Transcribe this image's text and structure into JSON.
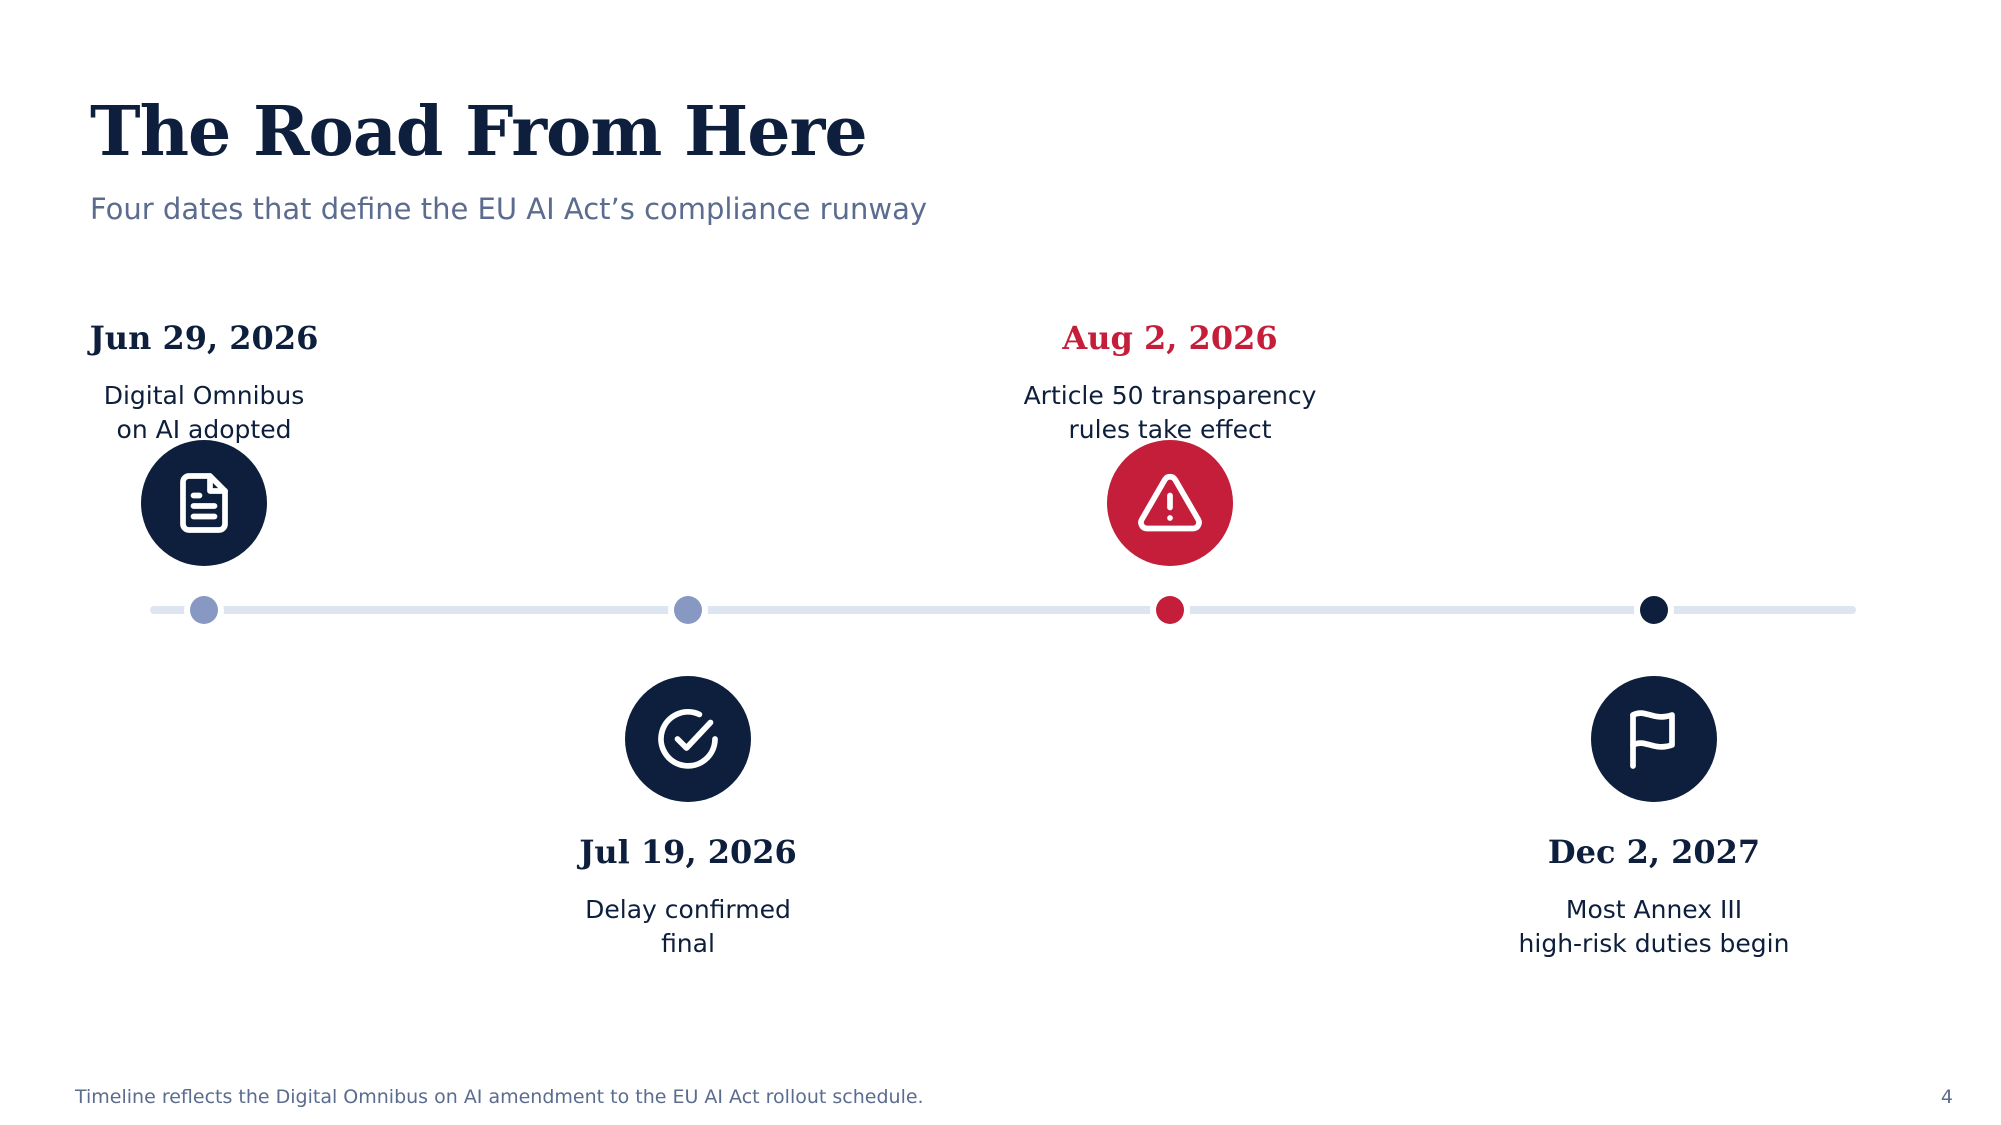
{
  "title": "The Road From Here",
  "subtitle": "Four dates that define the EU AI Act’s compliance runway",
  "milestones": [
    {
      "date": "Jun 29, 2026",
      "line1": "Digital Omnibus",
      "line2": "on AI adopted",
      "icon": "document-icon",
      "position": "above",
      "accent": "#0d1f3c",
      "dot_color": "#8798c2"
    },
    {
      "date": "Jul 19, 2026",
      "line1": "Delay confirmed",
      "line2": "final",
      "icon": "check-circle-icon",
      "position": "below",
      "accent": "#0d1f3c",
      "dot_color": "#8798c2"
    },
    {
      "date": "Aug 2, 2026",
      "line1": "Article 50 transparency",
      "line2": "rules take effect",
      "icon": "warning-icon",
      "position": "above",
      "accent": "#c41e3a",
      "dot_color": "#c41e3a"
    },
    {
      "date": "Dec 2, 2027",
      "line1": "Most Annex III",
      "line2": "high-risk duties begin",
      "icon": "flag-icon",
      "position": "below",
      "accent": "#0d1f3c",
      "dot_color": "#0d1f3c"
    }
  ],
  "footer": {
    "note": "Timeline reflects the Digital Omnibus on AI amendment to the EU AI Act rollout schedule.",
    "page_number": "4"
  }
}
